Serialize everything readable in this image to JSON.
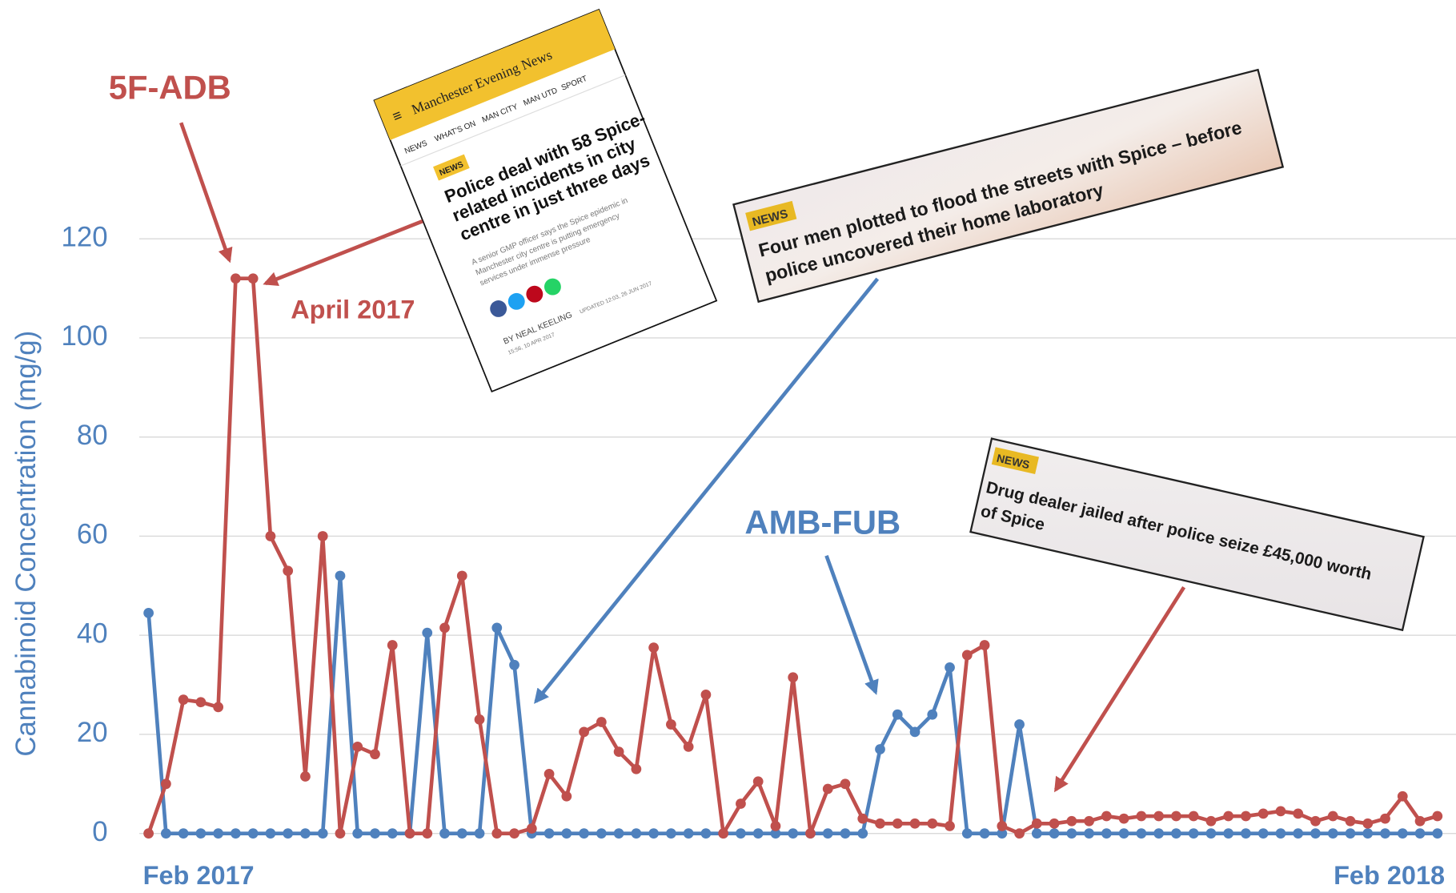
{
  "chart_data": {
    "type": "line",
    "y_label": "Cannabinoid Concentration (mg/g)",
    "categories": [
      "Feb 2017",
      null,
      null,
      null,
      null,
      null,
      null,
      null,
      null,
      null,
      null,
      null,
      null,
      null,
      null,
      null,
      null,
      null,
      null,
      null,
      null,
      null,
      null,
      null,
      null,
      null,
      null,
      null,
      null,
      null,
      null,
      null,
      null,
      null,
      null,
      null,
      null,
      null,
      null,
      null,
      null,
      null,
      null,
      null,
      null,
      null,
      null,
      null,
      null,
      null,
      null,
      null,
      null,
      null,
      null,
      null,
      null,
      null,
      null,
      null,
      null,
      null,
      null,
      null,
      null,
      null,
      null,
      null,
      null,
      null,
      null,
      null,
      null,
      null,
      "Feb 2018"
    ],
    "series": [
      {
        "name": "5F-ADB",
        "color": "#c0504d",
        "values": [
          0,
          10,
          27,
          26.5,
          25.5,
          112,
          112,
          60,
          53,
          11.5,
          60,
          0,
          17.5,
          16,
          38,
          0,
          0,
          41.5,
          52,
          23,
          0,
          0,
          1,
          12,
          7.5,
          20.5,
          22.5,
          16.5,
          13,
          37.5,
          22,
          17.5,
          28,
          0,
          6,
          10.5,
          1.5,
          31.5,
          0,
          9,
          10,
          3,
          2,
          2,
          2,
          2,
          1.5,
          36,
          38,
          1.5,
          0,
          2,
          2,
          2.5,
          2.5,
          3.5,
          3,
          3.5,
          3.5,
          3.5,
          3.5,
          2.5,
          3.5,
          3.5,
          4,
          4.5,
          4,
          2.5,
          3.5,
          2.5,
          2,
          3,
          7.5,
          2.5,
          3.5
        ]
      },
      {
        "name": "AMB-FUB",
        "color": "#4f81bd",
        "values": [
          44.5,
          0,
          0,
          0,
          0,
          0,
          0,
          0,
          0,
          0,
          0,
          52,
          0,
          0,
          0,
          0,
          40.5,
          0,
          0,
          0,
          41.5,
          34,
          0,
          0,
          0,
          0,
          0,
          0,
          0,
          0,
          0,
          0,
          0,
          0,
          0,
          0,
          0,
          0,
          0,
          0,
          0,
          0,
          17,
          24,
          20.5,
          24,
          33.5,
          0,
          0,
          0,
          22,
          0,
          0,
          0,
          0,
          0,
          0,
          0,
          0,
          0,
          0,
          0,
          0,
          0,
          0,
          0,
          0,
          0,
          0,
          0,
          0,
          0,
          0,
          0,
          0
        ]
      }
    ],
    "annotations": [
      "April 2017"
    ],
    "ylim": [
      0,
      120
    ],
    "yticks": [
      0,
      20,
      40,
      60,
      80,
      100,
      120
    ],
    "grid": true
  },
  "clippings": [
    {
      "masthead": "Manchester Evening News",
      "nav": [
        "NEWS",
        "WHAT'S ON",
        "MAN CITY",
        "MAN UTD",
        "SPORT"
      ],
      "tag": "NEWS",
      "headline": [
        "Police deal with 58 Spice-",
        "related incidents in city",
        "centre in just three days"
      ],
      "summary": [
        "A senior GMP officer says the Spice epidemic in",
        "Manchester city centre is putting emergency",
        "services under immense pressure"
      ],
      "byline": "BY NEAL KEELING",
      "date": "15:56, 10 APR 2017",
      "updated": "UPDATED 12:03, 26 JUN 2017"
    },
    {
      "tag": "NEWS",
      "headline": [
        "Four men plotted to flood the streets with Spice – before",
        "police uncovered their home laboratory"
      ]
    },
    {
      "tag": "NEWS",
      "headline": [
        "Drug dealer jailed after police seize £45,000 worth",
        "of Spice"
      ]
    }
  ]
}
